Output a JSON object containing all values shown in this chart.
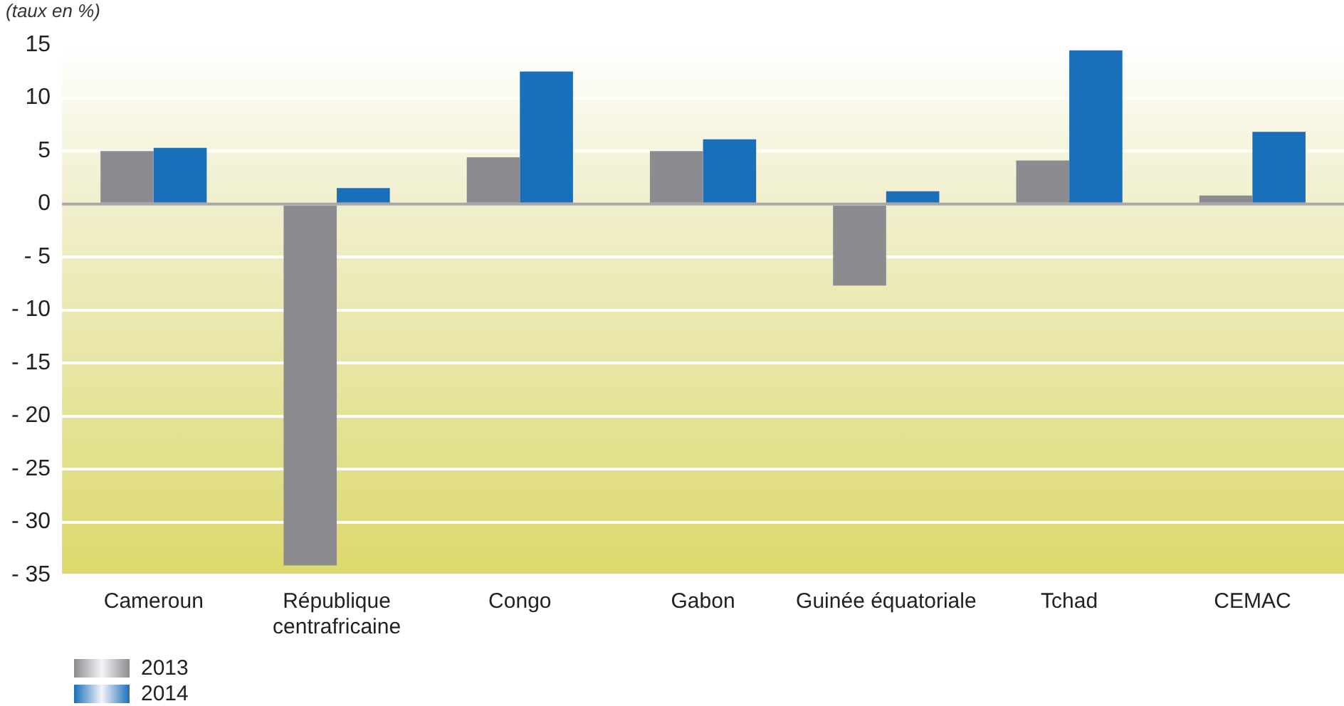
{
  "chart_data": {
    "type": "bar",
    "subtitle": "(taux en %)",
    "categories": [
      "Cameroun",
      "République centrafricaine",
      "Congo",
      "Gabon",
      "Guinée équatoriale",
      "Tchad",
      "CEMAC"
    ],
    "series": [
      {
        "name": "2013",
        "color": "#8c8c90",
        "values": [
          5.0,
          -34.1,
          4.4,
          5.0,
          -7.7,
          4.1,
          0.8
        ]
      },
      {
        "name": "2014",
        "color": "#1a6fba",
        "values": [
          5.3,
          1.5,
          12.5,
          6.1,
          1.2,
          14.5,
          6.8
        ]
      }
    ],
    "ylim": [
      -35,
      15
    ],
    "yticks": [
      15,
      10,
      5,
      0,
      {
        "value": -5,
        "label": "- 5"
      },
      {
        "value": -10,
        "label": "- 10"
      },
      {
        "value": -15,
        "label": "- 15"
      },
      {
        "value": -20,
        "label": "- 20"
      },
      {
        "value": -25,
        "label": "- 25"
      },
      {
        "value": -30,
        "label": "- 30"
      },
      {
        "value": -35,
        "label": "- 35"
      }
    ],
    "grid": "y",
    "legend": "bottom left"
  }
}
